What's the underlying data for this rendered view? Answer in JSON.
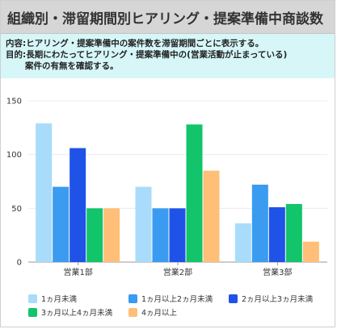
{
  "header": {
    "title": "組織別・滞留期間別ヒアリング・提案準備中商談数"
  },
  "description": {
    "line1": "内容:ヒアリング・提案準備中の案件数を滞留期間ごとに表示する。",
    "line2": "目的:長期にわたってヒアリング・提案準備中の(営業活動が止まっている)",
    "line3": "案件の有無を確認する。"
  },
  "chart_data": {
    "type": "bar",
    "categories": [
      "営業1部",
      "営業2部",
      "営業3部"
    ],
    "series": [
      {
        "name": "1ヵ月未満",
        "color": "#a8dcfa",
        "values": [
          129,
          70,
          36
        ]
      },
      {
        "name": "1ヵ月以上2ヵ月未満",
        "color": "#3a9bf0",
        "values": [
          70,
          50,
          72
        ]
      },
      {
        "name": "2ヵ月以上3ヵ月未満",
        "color": "#1f53e8",
        "values": [
          106,
          50,
          51
        ]
      },
      {
        "name": "3ヵ月以上4ヵ月未満",
        "color": "#12c46a",
        "values": [
          50,
          128,
          54
        ]
      },
      {
        "name": "4ヵ月以上",
        "color": "#ffbf78",
        "values": [
          50,
          85,
          19
        ]
      }
    ],
    "yticks": [
      0,
      50,
      100,
      150
    ],
    "ylim": [
      0,
      150
    ],
    "grid": true,
    "legend_position": "bottom"
  }
}
